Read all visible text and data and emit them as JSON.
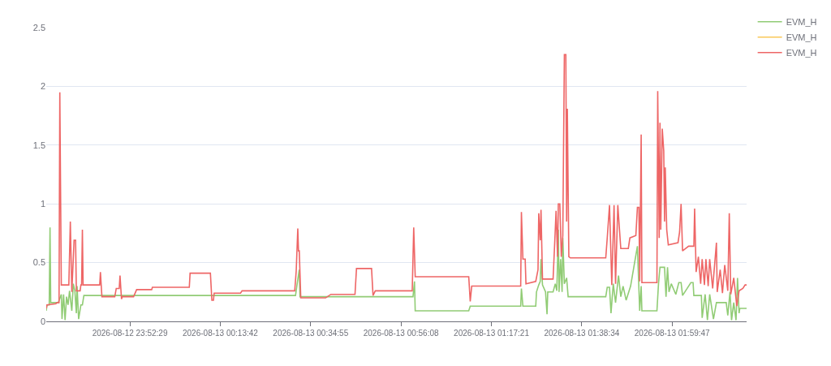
{
  "chart_data": {
    "type": "line",
    "xlim": [
      "2026-08-12T23:32:51",
      "2026-08-13T02:17:16"
    ],
    "xticks": [
      {
        "value": "2026-08-12T23:52:29",
        "label": "2026-08-12 23:52:29"
      },
      {
        "value": "2026-08-13T00:13:42",
        "label": "2026-08-13 00:13:42"
      },
      {
        "value": "2026-08-13T00:34:55",
        "label": "2026-08-13 00:34:55"
      },
      {
        "value": "2026-08-13T00:56:08",
        "label": "2026-08-13 00:56:08"
      },
      {
        "value": "2026-08-13T01:17:21",
        "label": "2026-08-13 01:17:21"
      },
      {
        "value": "2026-08-13T01:38:34",
        "label": "2026-08-13 01:38:34"
      },
      {
        "value": "2026-08-13T01:59:47",
        "label": "2026-08-13 01:59:47"
      }
    ],
    "ylim": [
      0,
      2.5
    ],
    "yticks": [
      0,
      0.5,
      1,
      1.5,
      2,
      2.5
    ],
    "grid": "y",
    "legend": "top right",
    "line_style": "solid",
    "series": [
      {
        "name": "EVM_H",
        "color": "#91cc75",
        "x": [
          "2026-08-12T23:32:51",
          "2026-08-12T23:33:01",
          "2026-08-12T23:33:33",
          "2026-08-12T23:33:44",
          "2026-08-12T23:33:54",
          "2026-08-12T23:35:40",
          "2026-08-12T23:36:23",
          "2026-08-12T23:36:33",
          "2026-08-12T23:36:55",
          "2026-08-12T23:37:16",
          "2026-08-12T23:37:37",
          "2026-08-12T23:37:58",
          "2026-08-12T23:38:19",
          "2026-08-12T23:38:51",
          "2026-08-12T23:39:12",
          "2026-08-12T23:39:34",
          "2026-08-12T23:39:55",
          "2026-08-12T23:40:05",
          "2026-08-12T23:40:27",
          "2026-08-12T23:40:59",
          "2026-08-12T23:41:20",
          "2026-08-12T23:41:41",
          "2026-08-13T00:31:22",
          "2026-08-13T00:31:43",
          "2026-08-13T00:32:15",
          "2026-08-13T00:32:25",
          "2026-08-13T00:58:57",
          "2026-08-13T00:59:18",
          "2026-08-13T00:59:28",
          "2026-08-13T01:12:02",
          "2026-08-13T01:12:23",
          "2026-08-13T01:24:14",
          "2026-08-13T01:24:24",
          "2026-08-13T01:24:45",
          "2026-08-13T01:27:46",
          "2026-08-13T01:27:56",
          "2026-08-13T01:28:28",
          "2026-08-13T01:28:49",
          "2026-08-13T01:29:00",
          "2026-08-13T01:29:21",
          "2026-08-13T01:30:04",
          "2026-08-13T01:30:25",
          "2026-08-13T01:30:35",
          "2026-08-13T01:31:50",
          "2026-08-13T01:32:21",
          "2026-08-13T01:32:43",
          "2026-08-13T01:33:04",
          "2026-08-13T01:33:14",
          "2026-08-13T01:33:36",
          "2026-08-13T01:33:57",
          "2026-08-13T01:34:07",
          "2026-08-13T01:34:29",
          "2026-08-13T01:35:01",
          "2026-08-13T01:35:22",
          "2026-08-13T01:35:54",
          "2026-08-13T01:44:12",
          "2026-08-13T01:44:33",
          "2026-08-13T01:45:05",
          "2026-08-13T01:45:26",
          "2026-08-13T01:45:58",
          "2026-08-13T01:46:30",
          "2026-08-13T01:47:12",
          "2026-08-13T01:47:44",
          "2026-08-13T01:48:16",
          "2026-08-13T01:48:59",
          "2026-08-13T01:50:02",
          "2026-08-13T01:51:38",
          "2026-08-13T01:52:10",
          "2026-08-13T01:52:31",
          "2026-08-13T01:52:41",
          "2026-08-13T01:56:13",
          "2026-08-13T01:56:35",
          "2026-08-13T01:56:56",
          "2026-08-13T01:58:00",
          "2026-08-13T01:58:21",
          "2026-08-13T01:58:42",
          "2026-08-13T01:59:03",
          "2026-08-13T01:59:35",
          "2026-08-13T02:00:39",
          "2026-08-13T02:01:21",
          "2026-08-13T02:01:53",
          "2026-08-13T02:02:14",
          "2026-08-13T02:04:11",
          "2026-08-13T02:04:42",
          "2026-08-13T02:04:53",
          "2026-08-13T02:06:39",
          "2026-08-13T02:06:50",
          "2026-08-13T02:07:32",
          "2026-08-13T02:08:04",
          "2026-08-13T02:08:36",
          "2026-08-13T02:09:29",
          "2026-08-13T02:10:11",
          "2026-08-13T02:12:29",
          "2026-08-13T02:12:51",
          "2026-08-13T02:13:22",
          "2026-08-13T02:13:44",
          "2026-08-13T02:14:15",
          "2026-08-13T02:14:47",
          "2026-08-13T02:15:08",
          "2026-08-13T02:15:30",
          "2026-08-13T02:15:40",
          "2026-08-13T02:17:16"
        ],
        "values": [
          0.09,
          0.14,
          0.14,
          0.8,
          0.16,
          0.16,
          0.23,
          0.02,
          0.23,
          0.01,
          0.21,
          0.14,
          0.26,
          0.09,
          0.32,
          0.26,
          0.07,
          0.3,
          0.02,
          0.14,
          0.14,
          0.22,
          0.22,
          0.31,
          0.44,
          0.21,
          0.21,
          0.34,
          0.09,
          0.09,
          0.13,
          0.13,
          0.28,
          0.13,
          0.13,
          0.25,
          0.31,
          0.34,
          0.53,
          0.31,
          0.25,
          0.06,
          0.25,
          0.25,
          0.32,
          0.26,
          0.78,
          0.25,
          0.53,
          0.25,
          0.71,
          0.32,
          0.37,
          0.21,
          0.21,
          0.21,
          0.29,
          0.29,
          0.07,
          0.32,
          0.16,
          0.39,
          0.21,
          0.3,
          0.18,
          0.3,
          0.64,
          0.09,
          0.3,
          0.09,
          0.09,
          0.32,
          0.46,
          0.46,
          0.21,
          0.46,
          0.25,
          0.32,
          0.23,
          0.33,
          0.33,
          0.22,
          0.33,
          0.33,
          0.22,
          0.22,
          0.03,
          0.23,
          0.01,
          0.23,
          0.02,
          0.16,
          0.16,
          0.05,
          0.25,
          0.01,
          0.16,
          0.01,
          0.37,
          0.07,
          0.11,
          0.11
        ]
      },
      {
        "name": "EVM_H",
        "color": "#fac858",
        "values": [
          null
        ]
      },
      {
        "name": "EVM_H",
        "color": "#ee6666",
        "x": [
          "2026-08-12T23:32:51",
          "2026-08-12T23:33:01",
          "2026-08-12T23:35:08",
          "2026-08-12T23:35:19",
          "2026-08-12T23:35:51",
          "2026-08-12T23:36:02",
          "2026-08-12T23:36:23",
          "2026-08-12T23:38:09",
          "2026-08-12T23:38:30",
          "2026-08-12T23:38:51",
          "2026-08-12T23:39:23",
          "2026-08-12T23:39:44",
          "2026-08-12T23:39:55",
          "2026-08-12T23:40:48",
          "2026-08-12T23:40:59",
          "2026-08-12T23:41:09",
          "2026-08-12T23:41:20",
          "2026-08-12T23:41:30",
          "2026-08-12T23:45:24",
          "2026-08-12T23:45:34",
          "2026-08-12T23:45:55",
          "2026-08-12T23:48:56",
          "2026-08-12T23:49:17",
          "2026-08-12T23:49:59",
          "2026-08-12T23:50:10",
          "2026-08-12T23:50:31",
          "2026-08-12T23:50:42",
          "2026-08-12T23:53:21",
          "2026-08-12T23:54:04",
          "2026-08-12T23:57:36",
          "2026-08-12T23:57:46",
          "2026-08-13T00:06:26",
          "2026-08-13T00:06:37",
          "2026-08-13T00:11:23",
          "2026-08-13T00:11:44",
          "2026-08-13T00:12:06",
          "2026-08-13T00:12:16",
          "2026-08-13T00:18:28",
          "2026-08-13T00:18:49",
          "2026-08-13T00:31:11",
          "2026-08-13T00:31:32",
          "2026-08-13T00:31:54",
          "2026-08-13T00:32:04",
          "2026-08-13T00:32:15",
          "2026-08-13T00:32:36",
          "2026-08-13T00:38:26",
          "2026-08-13T00:39:40",
          "2026-08-13T00:45:20",
          "2026-08-13T00:45:41",
          "2026-08-13T00:49:13",
          "2026-08-13T00:49:34",
          "2026-08-13T00:50:06",
          "2026-08-13T00:58:46",
          "2026-08-13T00:59:07",
          "2026-08-13T00:59:28",
          "2026-08-13T01:12:02",
          "2026-08-13T01:12:23",
          "2026-08-13T01:12:44",
          "2026-08-13T01:24:14",
          "2026-08-13T01:24:24",
          "2026-08-13T01:24:45",
          "2026-08-13T01:25:17",
          "2026-08-13T01:25:28",
          "2026-08-13T01:27:46",
          "2026-08-13T01:28:18",
          "2026-08-13T01:28:28",
          "2026-08-13T01:28:49",
          "2026-08-13T01:29:00",
          "2026-08-13T01:29:21",
          "2026-08-13T01:31:50",
          "2026-08-13T01:32:11",
          "2026-08-13T01:32:32",
          "2026-08-13T01:32:53",
          "2026-08-13T01:33:04",
          "2026-08-13T01:33:25",
          "2026-08-13T01:33:46",
          "2026-08-13T01:34:07",
          "2026-08-13T01:34:29",
          "2026-08-13T01:34:50",
          "2026-08-13T01:35:01",
          "2026-08-13T01:35:11",
          "2026-08-13T01:35:32",
          "2026-08-13T01:35:54",
          "2026-08-13T01:44:12",
          "2026-08-13T01:44:33",
          "2026-08-13T01:45:05",
          "2026-08-13T01:45:37",
          "2026-08-13T01:46:09",
          "2026-08-13T01:46:30",
          "2026-08-13T01:47:02",
          "2026-08-13T01:47:23",
          "2026-08-13T01:47:44",
          "2026-08-13T01:49:30",
          "2026-08-13T01:49:52",
          "2026-08-13T01:51:16",
          "2026-08-13T01:51:38",
          "2026-08-13T01:51:59",
          "2026-08-13T01:52:10",
          "2026-08-13T01:52:31",
          "2026-08-13T01:52:41",
          "2026-08-13T01:56:13",
          "2026-08-13T01:56:24",
          "2026-08-13T01:56:45",
          "2026-08-13T01:56:56",
          "2026-08-13T01:57:07",
          "2026-08-13T01:57:28",
          "2026-08-13T01:57:49",
          "2026-08-13T01:58:00",
          "2026-08-13T01:58:10",
          "2026-08-13T01:58:31",
          "2026-08-13T01:58:53",
          "2026-08-13T02:01:10",
          "2026-08-13T02:01:32",
          "2026-08-13T02:01:53",
          "2026-08-13T02:02:14",
          "2026-08-13T02:03:39",
          "2026-08-13T02:04:53",
          "2026-08-13T02:05:04",
          "2026-08-13T02:05:25",
          "2026-08-13T02:05:57",
          "2026-08-13T02:06:29",
          "2026-08-13T02:06:50",
          "2026-08-13T02:07:22",
          "2026-08-13T02:07:43",
          "2026-08-13T02:08:15",
          "2026-08-13T02:08:36",
          "2026-08-13T02:09:18",
          "2026-08-13T02:10:11",
          "2026-08-13T02:10:22",
          "2026-08-13T02:11:04",
          "2026-08-13T02:11:36",
          "2026-08-13T02:12:08",
          "2026-08-13T02:12:51",
          "2026-08-13T02:13:12",
          "2026-08-13T02:13:33",
          "2026-08-13T02:14:15",
          "2026-08-13T02:14:58",
          "2026-08-13T02:15:30",
          "2026-08-13T02:16:23",
          "2026-08-13T02:16:55",
          "2026-08-13T02:17:16"
        ],
        "values": [
          0.11,
          0.14,
          0.15,
          0.16,
          0.16,
          1.95,
          0.31,
          0.31,
          0.85,
          0.25,
          0.69,
          0.69,
          0.26,
          0.26,
          0.31,
          0.31,
          0.78,
          0.31,
          0.31,
          0.42,
          0.21,
          0.21,
          0.28,
          0.28,
          0.39,
          0.19,
          0.21,
          0.21,
          0.27,
          0.27,
          0.29,
          0.29,
          0.41,
          0.41,
          0.18,
          0.18,
          0.24,
          0.24,
          0.26,
          0.26,
          0.43,
          0.79,
          0.6,
          0.6,
          0.2,
          0.2,
          0.23,
          0.23,
          0.45,
          0.45,
          0.22,
          0.26,
          0.26,
          0.8,
          0.38,
          0.38,
          0.17,
          0.3,
          0.3,
          0.93,
          0.53,
          0.53,
          0.32,
          0.34,
          0.44,
          0.92,
          0.69,
          0.95,
          0.36,
          0.36,
          0.64,
          0.94,
          0.55,
          1.0,
          1.0,
          0.55,
          0.73,
          2.27,
          2.27,
          0.85,
          1.81,
          0.55,
          0.54,
          0.54,
          0.71,
          0.99,
          0.31,
          0.99,
          0.32,
          0.99,
          0.8,
          0.62,
          0.62,
          0.71,
          0.73,
          0.97,
          0.97,
          0.34,
          1.59,
          0.33,
          0.33,
          1.96,
          0.71,
          1.69,
          0.78,
          1.64,
          1.45,
          0.85,
          1.31,
          0.78,
          0.65,
          0.67,
          0.76,
          1.0,
          0.6,
          0.64,
          0.64,
          0.96,
          0.42,
          0.55,
          0.32,
          0.53,
          0.31,
          0.53,
          0.3,
          0.53,
          0.28,
          0.67,
          0.25,
          0.44,
          0.24,
          0.48,
          0.26,
          0.92,
          0.23,
          0.37,
          0.13,
          0.26,
          0.28,
          0.31,
          0.31
        ]
      }
    ]
  }
}
